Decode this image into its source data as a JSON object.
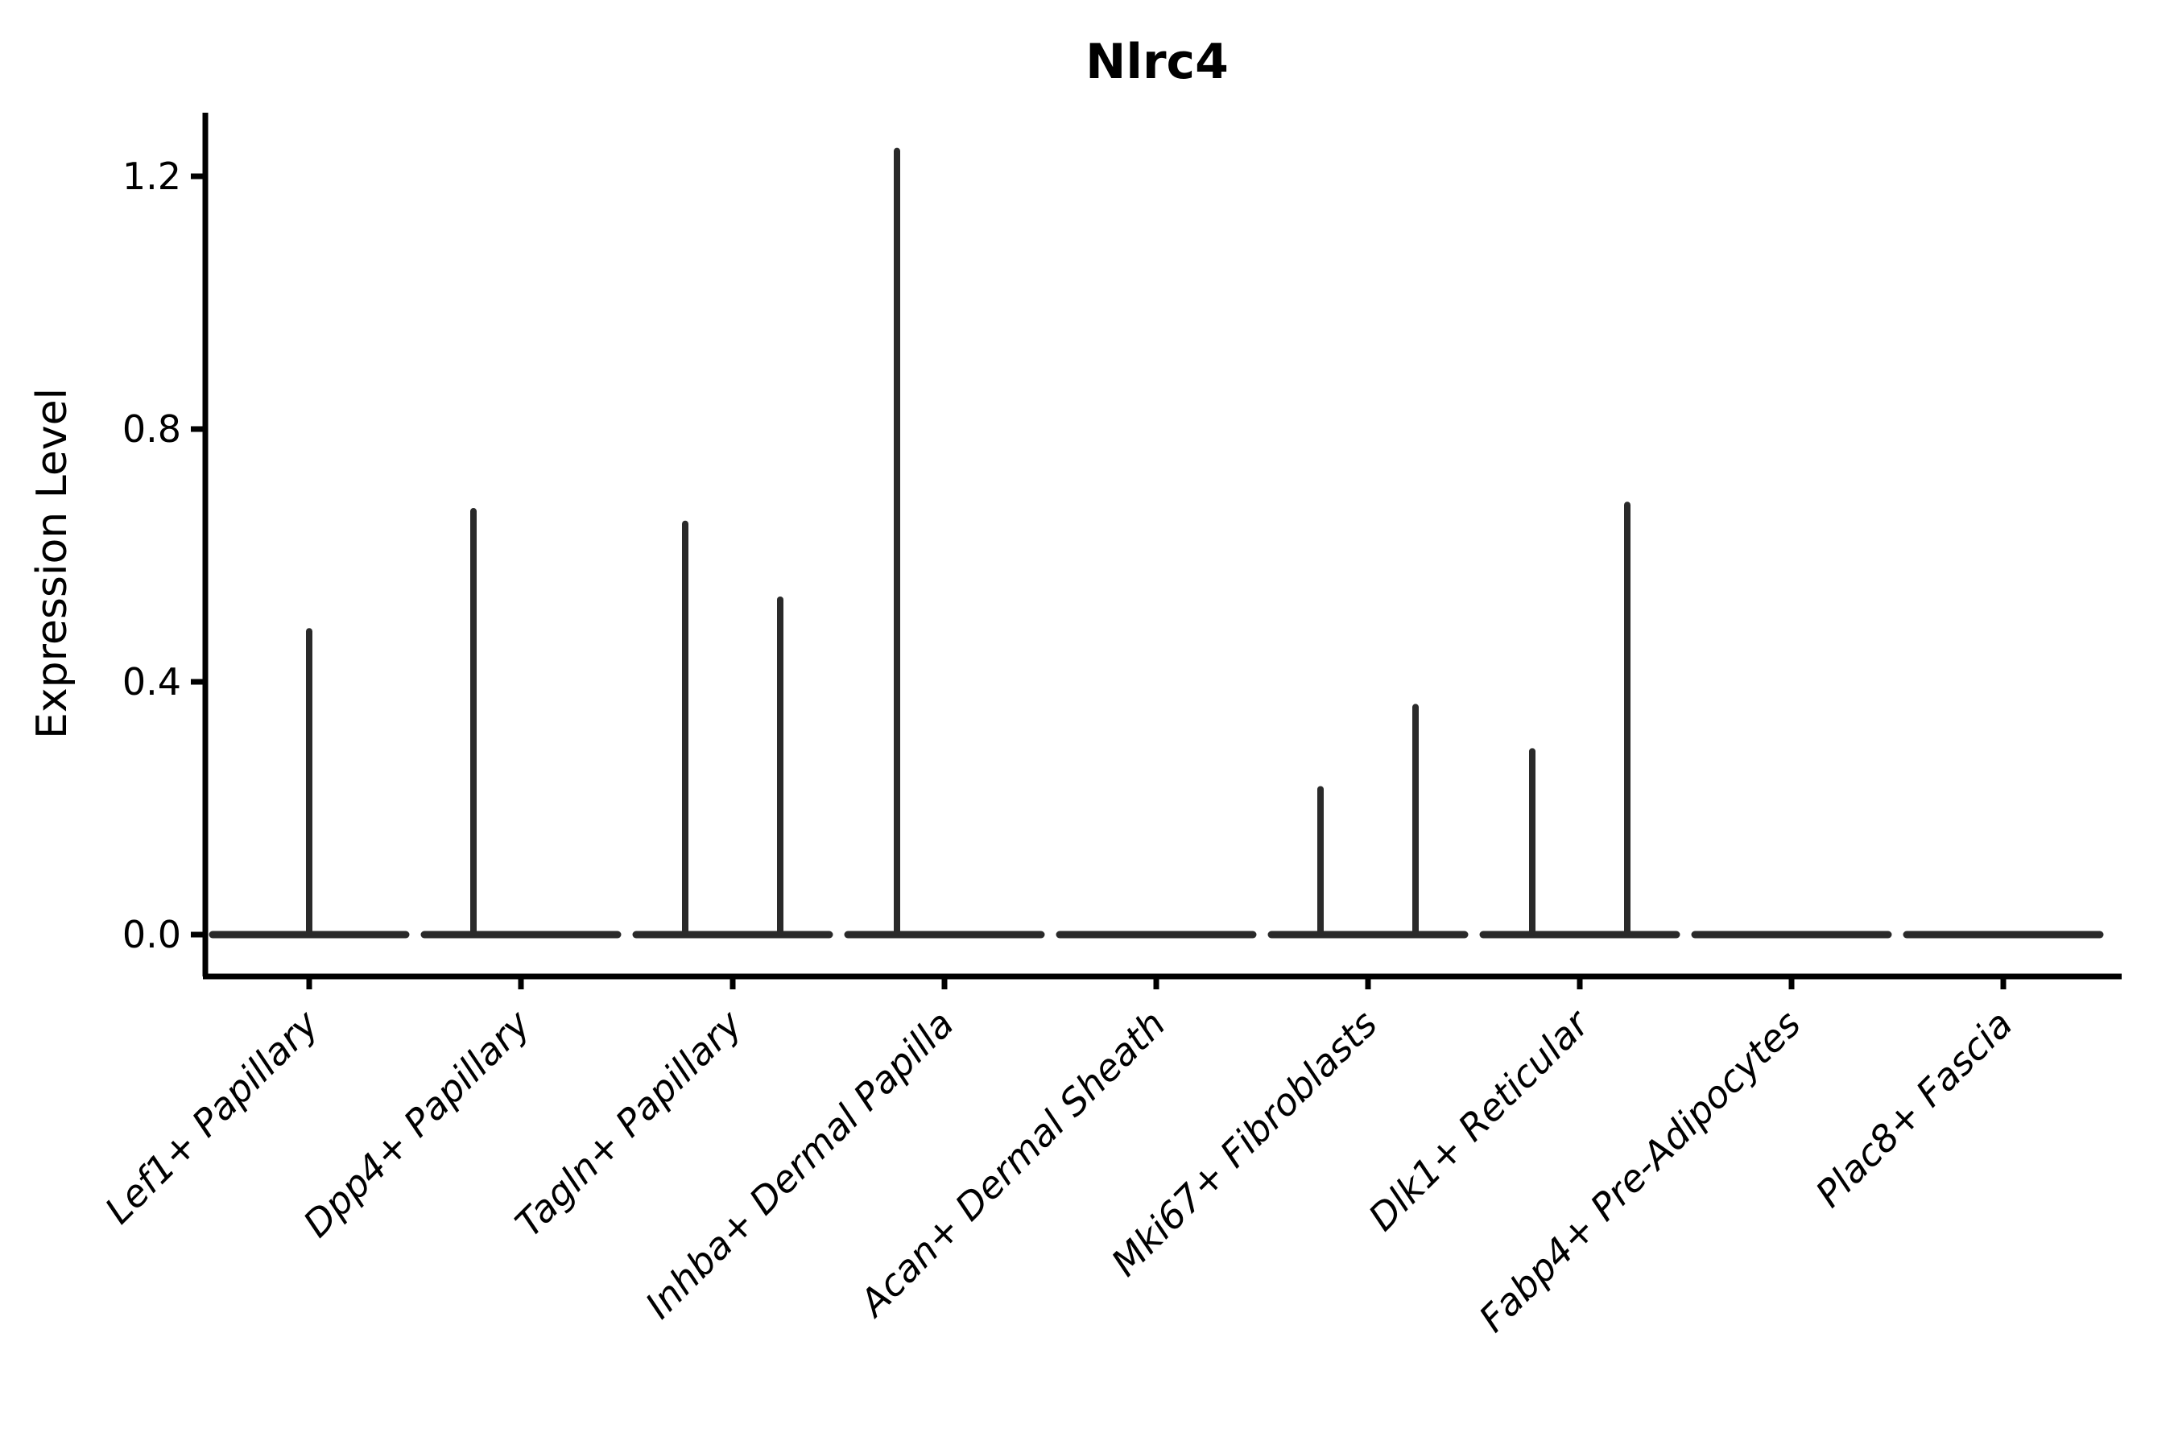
{
  "chart_data": {
    "type": "violin",
    "title": "Nlrc4",
    "ylabel": "Expression Level",
    "xlabel": "",
    "ytick_labels": [
      "0.0",
      "0.4",
      "0.8",
      "1.2"
    ],
    "ytick_values": [
      0.0,
      0.4,
      0.8,
      1.2
    ],
    "ylim": [
      -0.066,
      1.305
    ],
    "grid": false,
    "legend": null,
    "categories": [
      "Lef1+ Papillary",
      "Dpp4+ Papillary",
      "Tagln+ Papillary",
      "Inhba+ Dermal Papilla",
      "Acan+ Dermal Sheath",
      "Mki67+ Fibroblasts",
      "Dlk1+ Reticular",
      "Fabp4+ Pre-Adipocytes",
      "Plac8+ Fascia"
    ],
    "violins": [
      {
        "category": "Lef1+ Papillary",
        "zero_bulk": true,
        "spikes": [
          {
            "pos": "center",
            "max": 0.48
          }
        ]
      },
      {
        "category": "Dpp4+ Papillary",
        "zero_bulk": true,
        "spikes": [
          {
            "pos": "left",
            "max": 0.67
          }
        ]
      },
      {
        "category": "Tagln+ Papillary",
        "zero_bulk": true,
        "spikes": [
          {
            "pos": "left",
            "max": 0.65
          },
          {
            "pos": "right",
            "max": 0.53
          }
        ]
      },
      {
        "category": "Inhba+ Dermal Papilla",
        "zero_bulk": true,
        "spikes": [
          {
            "pos": "left",
            "max": 1.24
          }
        ]
      },
      {
        "category": "Acan+ Dermal Sheath",
        "zero_bulk": true,
        "spikes": []
      },
      {
        "category": "Mki67+ Fibroblasts",
        "zero_bulk": true,
        "spikes": [
          {
            "pos": "left",
            "max": 0.23
          },
          {
            "pos": "right",
            "max": 0.36
          }
        ]
      },
      {
        "category": "Dlk1+ Reticular",
        "zero_bulk": true,
        "spikes": [
          {
            "pos": "left",
            "max": 0.29
          },
          {
            "pos": "right",
            "max": 0.68
          }
        ]
      },
      {
        "category": "Fabp4+ Pre-Adipocytes",
        "zero_bulk": true,
        "spikes": []
      },
      {
        "category": "Plac8+ Fascia",
        "zero_bulk": true,
        "spikes": []
      }
    ],
    "colors": {
      "spine": "#000000",
      "violin_line": "#2a2a2a",
      "text": "#000000",
      "background": "#ffffff"
    }
  }
}
